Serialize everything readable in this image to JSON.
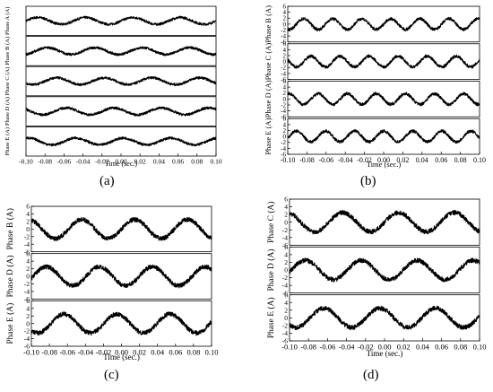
{
  "captions": [
    "(a)",
    "(b)",
    "(c)",
    "(d)"
  ],
  "chart_data": [
    {
      "type": "line",
      "panel": "(a)",
      "xlabel": "Time (sec.)",
      "xlim": [
        -0.1,
        0.1
      ],
      "xticks": [
        -0.1,
        -0.08,
        -0.06,
        -0.04,
        -0.02,
        0.0,
        0.02,
        0.04,
        0.06,
        0.08,
        0.1
      ],
      "ylim": [
        -6,
        6
      ],
      "yticks": [
        -6,
        -4,
        -2,
        0,
        2,
        4,
        6
      ],
      "grid": false,
      "series": [
        {
          "name": "Phase A (A)",
          "amplitude": 1.4,
          "frequency_hz": 20,
          "phase_deg": 0,
          "noise": 0.5
        },
        {
          "name": "Phase B (A)",
          "amplitude": 1.4,
          "frequency_hz": 20,
          "phase_deg": -72,
          "noise": 0.5
        },
        {
          "name": "Phase C (A)",
          "amplitude": 1.4,
          "frequency_hz": 20,
          "phase_deg": -144,
          "noise": 0.5
        },
        {
          "name": "Phase D (A)",
          "amplitude": 1.4,
          "frequency_hz": 20,
          "phase_deg": 144,
          "noise": 0.5
        },
        {
          "name": "Phase E (A)",
          "amplitude": 1.4,
          "frequency_hz": 20,
          "phase_deg": 72,
          "noise": 0.5
        }
      ]
    },
    {
      "type": "line",
      "panel": "(b)",
      "xlabel": "Time (sec.)",
      "xlim": [
        -0.1,
        0.1
      ],
      "xticks": [
        -0.1,
        -0.08,
        -0.06,
        -0.04,
        -0.02,
        0.0,
        0.02,
        0.04,
        0.06,
        0.08,
        0.1
      ],
      "ylim": [
        -6,
        6
      ],
      "yticks": [
        -6,
        -4,
        -2,
        0,
        2,
        4,
        6
      ],
      "grid": false,
      "series": [
        {
          "name": "Phase B (A)",
          "amplitude": 1.8,
          "frequency_hz": 33,
          "phase_deg": 0,
          "noise": 0.5
        },
        {
          "name": "Phase C (A)",
          "amplitude": 1.8,
          "frequency_hz": 33,
          "phase_deg": -90,
          "noise": 0.5
        },
        {
          "name": "Phase D (A)",
          "amplitude": 1.8,
          "frequency_hz": 33,
          "phase_deg": 180,
          "noise": 0.5
        },
        {
          "name": "Phase E (A)",
          "amplitude": 1.8,
          "frequency_hz": 33,
          "phase_deg": 90,
          "noise": 0.5
        }
      ]
    },
    {
      "type": "line",
      "panel": "(c)",
      "xlabel": "Time (sec.)",
      "xlim": [
        -0.1,
        0.1
      ],
      "xticks": [
        -0.1,
        -0.08,
        -0.06,
        -0.04,
        -0.02,
        0.0,
        0.02,
        0.04,
        0.06,
        0.08,
        0.1
      ],
      "ylim": [
        -6,
        6
      ],
      "yticks": [
        -6,
        -4,
        -2,
        0,
        2,
        4,
        6
      ],
      "grid": false,
      "series": [
        {
          "name": "Phase B (A)",
          "amplitude": 2.5,
          "frequency_hz": 17,
          "phase_deg": 0,
          "noise": 0.6
        },
        {
          "name": "Phase D (A)",
          "amplitude": 2.5,
          "frequency_hz": 17,
          "phase_deg": -120,
          "noise": 0.6
        },
        {
          "name": "Phase E (A)",
          "amplitude": 2.5,
          "frequency_hz": 17,
          "phase_deg": 120,
          "noise": 0.6
        }
      ]
    },
    {
      "type": "line",
      "panel": "(d)",
      "xlabel": "Time (sec.)",
      "xlim": [
        -0.1,
        0.1
      ],
      "xticks": [
        -0.1,
        -0.08,
        -0.06,
        -0.04,
        -0.02,
        0.0,
        0.02,
        0.04,
        0.06,
        0.08,
        0.1
      ],
      "ylim": [
        -6,
        6
      ],
      "yticks": [
        -6,
        -4,
        -2,
        0,
        2,
        4,
        6
      ],
      "grid": false,
      "series": [
        {
          "name": "Phase C (A)",
          "amplitude": 2.5,
          "frequency_hz": 17,
          "phase_deg": 0,
          "noise": 0.6
        },
        {
          "name": "Phase D (A)",
          "amplitude": 2.5,
          "frequency_hz": 17,
          "phase_deg": -120,
          "noise": 0.6
        },
        {
          "name": "Phase E (A)",
          "amplitude": 2.5,
          "frequency_hz": 17,
          "phase_deg": 120,
          "noise": 0.6
        }
      ]
    }
  ]
}
